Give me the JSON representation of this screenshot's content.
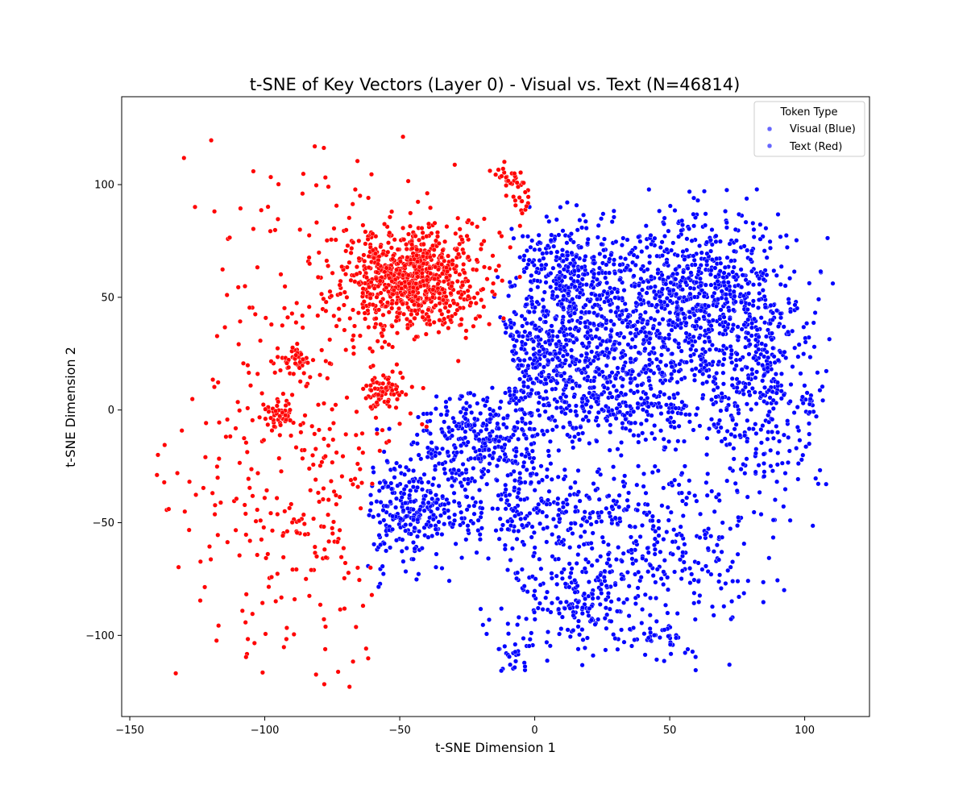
{
  "chart_data": {
    "type": "scatter",
    "title": "t-SNE of Key Vectors (Layer 0) - Visual vs. Text (N=46814)",
    "xlabel": "t-SNE Dimension 1",
    "ylabel": "t-SNE Dimension 2",
    "xlim": [
      -153,
      124
    ],
    "ylim": [
      -136,
      139
    ],
    "xticks": [
      -150,
      -100,
      -50,
      0,
      50,
      100
    ],
    "yticks": [
      -100,
      -50,
      0,
      50,
      100
    ],
    "grid": false,
    "legend": {
      "title": "Token Type",
      "placement": "top-right",
      "entries": [
        "Visual (Blue)",
        "Text (Red)"
      ]
    },
    "colors": {
      "visual": "#0000ff",
      "text": "#ff0000",
      "legend_marker": "#5b5bd6"
    },
    "series": [
      {
        "name": "Visual (Blue)",
        "color": "#0000ff",
        "clusters": [
          {
            "cx": 40,
            "cy": 45,
            "sx": 22,
            "sy": 22,
            "w": 0.22
          },
          {
            "cx": 70,
            "cy": 50,
            "sx": 14,
            "sy": 18,
            "w": 0.1
          },
          {
            "cx": 10,
            "cy": 60,
            "sx": 10,
            "sy": 12,
            "w": 0.06
          },
          {
            "cx": 0,
            "cy": 20,
            "sx": 14,
            "sy": 16,
            "w": 0.09
          },
          {
            "cx": -20,
            "cy": -15,
            "sx": 12,
            "sy": 9,
            "w": 0.08
          },
          {
            "cx": -45,
            "cy": -45,
            "sx": 10,
            "sy": 14,
            "w": 0.07
          },
          {
            "cx": 0,
            "cy": -45,
            "sx": 22,
            "sy": 10,
            "w": 0.07
          },
          {
            "cx": 15,
            "cy": -85,
            "sx": 15,
            "sy": 12,
            "w": 0.06
          },
          {
            "cx": 50,
            "cy": -60,
            "sx": 18,
            "sy": 20,
            "w": 0.07
          },
          {
            "cx": 80,
            "cy": 0,
            "sx": 12,
            "sy": 18,
            "w": 0.06
          },
          {
            "cx": 30,
            "cy": 5,
            "sx": 22,
            "sy": 12,
            "w": 0.08
          },
          {
            "cx": 95,
            "cy": 15,
            "sx": 6,
            "sy": 25,
            "w": 0.02
          },
          {
            "cx": 45,
            "cy": -100,
            "sx": 6,
            "sy": 4,
            "w": 0.01
          },
          {
            "cx": -8,
            "cy": -112,
            "sx": 3,
            "sy": 5,
            "w": 0.005
          }
        ]
      },
      {
        "name": "Text (Red)",
        "color": "#ff0000",
        "clusters": [
          {
            "cx": -45,
            "cy": 58,
            "sx": 13,
            "sy": 11,
            "w": 0.55
          },
          {
            "cx": -55,
            "cy": 8,
            "sx": 4,
            "sy": 4,
            "w": 0.05
          },
          {
            "cx": -88,
            "cy": 22,
            "sx": 3,
            "sy": 3,
            "w": 0.03
          },
          {
            "cx": -95,
            "cy": -2,
            "sx": 3,
            "sy": 3,
            "w": 0.03
          },
          {
            "cx": -10,
            "cy": 104,
            "sx": 3,
            "sy": 3,
            "w": 0.02
          },
          {
            "cx": -5,
            "cy": 93,
            "sx": 2,
            "sy": 2,
            "w": 0.01
          },
          {
            "cx": -85,
            "cy": -40,
            "sx": 25,
            "sy": 40,
            "w": 0.18
          },
          {
            "cx": -70,
            "cy": 40,
            "sx": 30,
            "sy": 40,
            "w": 0.13
          }
        ]
      }
    ]
  }
}
